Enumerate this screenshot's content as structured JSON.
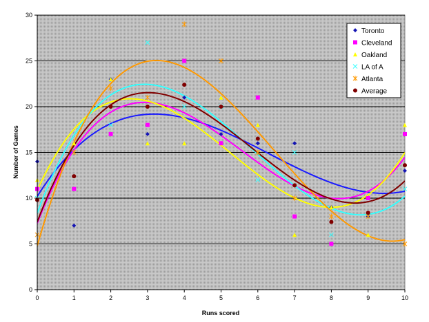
{
  "chart_data": {
    "type": "scatter",
    "title": "",
    "xlabel": "Runs scored",
    "ylabel": "Number of Games",
    "xlim": [
      0,
      10
    ],
    "ylim": [
      0,
      30
    ],
    "xticks": [
      0,
      1,
      2,
      3,
      4,
      5,
      6,
      7,
      8,
      9,
      10
    ],
    "yticks": [
      0,
      5,
      10,
      15,
      20,
      25,
      30
    ],
    "grid": "horizontal",
    "plot_background": "#c0c0c0",
    "legend_position": "top-right",
    "trendline": "polynomial",
    "x": [
      0,
      1,
      2,
      3,
      4,
      5,
      6,
      7,
      8,
      9,
      10
    ],
    "series": [
      {
        "name": "Toronto",
        "marker": "diamond",
        "color": "#1515b4",
        "trend_color": "#1a1aff",
        "values": [
          14,
          7,
          23,
          17,
          21,
          17,
          16,
          16,
          9,
          8,
          13
        ]
      },
      {
        "name": "Cleveland",
        "marker": "square",
        "color": "#ff00ff",
        "trend_color": "#ff00ff",
        "values": [
          11,
          11,
          17,
          18,
          25,
          16,
          21,
          8,
          5,
          10,
          17
        ]
      },
      {
        "name": "Oakland",
        "marker": "triangle",
        "color": "#ffff00",
        "trend_color": "#ffff00",
        "values": [
          12,
          16,
          23,
          16,
          16,
          21,
          18,
          6,
          9,
          6,
          18
        ]
      },
      {
        "name": "LA of A",
        "marker": "x",
        "color": "#33ffff",
        "trend_color": "#33ffff",
        "values": [
          10,
          15,
          18,
          27,
          20,
          20,
          12,
          15,
          6,
          8,
          11
        ]
      },
      {
        "name": "Atlanta",
        "marker": "star",
        "color": "#ff9900",
        "trend_color": "#ff9900",
        "values": [
          6,
          15,
          22,
          21,
          29,
          25,
          15,
          10,
          8,
          8,
          5
        ]
      },
      {
        "name": "Average",
        "marker": "circle",
        "color": "#800000",
        "trend_color": "#800000",
        "values": [
          9.8,
          12.4,
          20,
          20,
          22.4,
          20,
          16.5,
          11.4,
          7.4,
          8.4,
          13.6
        ]
      }
    ]
  }
}
